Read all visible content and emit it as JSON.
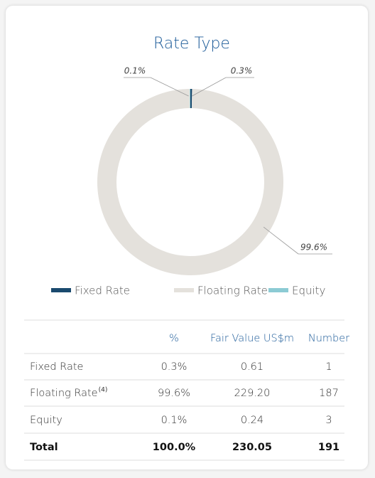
{
  "chart_data": {
    "type": "pie",
    "donut": true,
    "title": "Rate Type",
    "categories": [
      "Fixed Rate",
      "Floating Rate",
      "Equity"
    ],
    "values": [
      0.3,
      99.6,
      0.1
    ],
    "value_labels": [
      "0.3%",
      "99.6%",
      "0.1%"
    ],
    "colors": [
      "#1a4a6e",
      "#e4e1dc",
      "#8ccbd4"
    ]
  },
  "table": {
    "columns": [
      "%",
      "Fair Value US$m",
      "Number"
    ],
    "rows": [
      {
        "label": "Fixed Rate",
        "cells": [
          "0.3%",
          "0.61",
          "1"
        ]
      },
      {
        "label": "Floating Rate",
        "note": "(4)",
        "cells": [
          "99.6%",
          "229.20",
          "187"
        ]
      },
      {
        "label": "Equity",
        "cells": [
          "0.1%",
          "0.24",
          "3"
        ]
      },
      {
        "label": "Total",
        "cells": [
          "100.0%",
          "230.05",
          "191"
        ],
        "bold": true
      }
    ]
  }
}
